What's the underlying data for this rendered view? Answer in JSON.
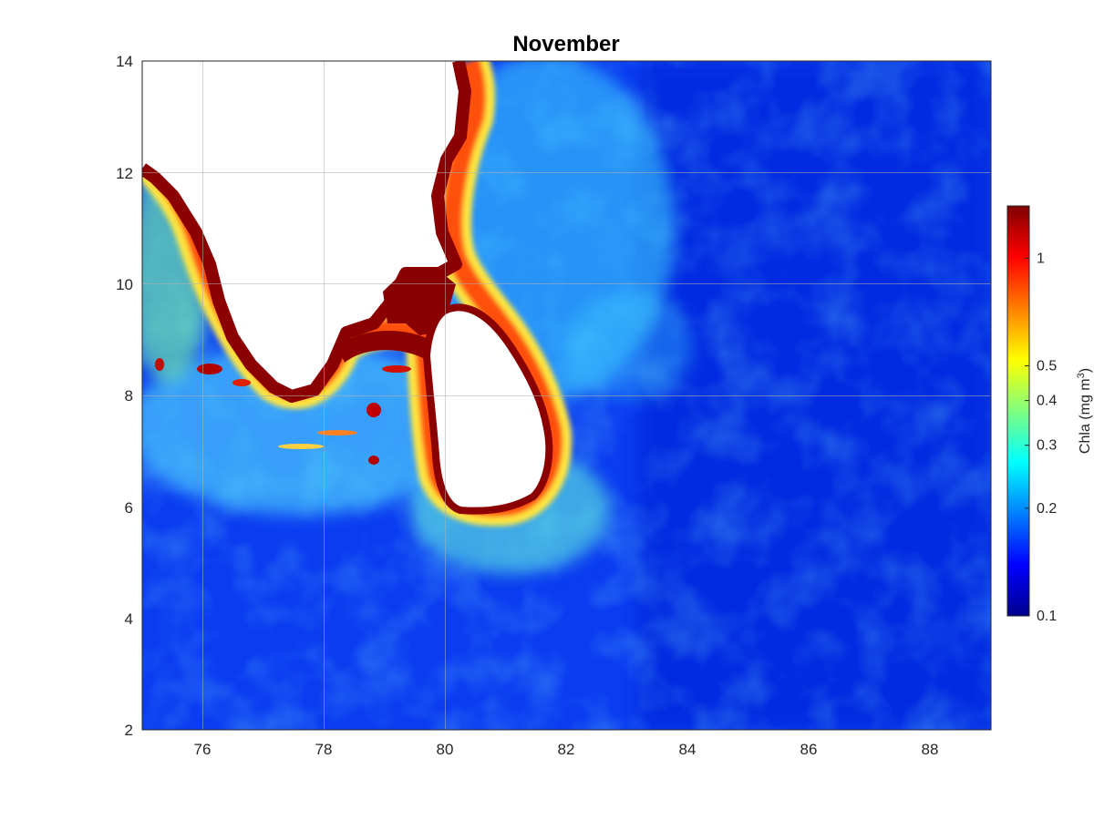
{
  "title": "November",
  "map": {
    "x_ticks": [
      "76",
      "78",
      "80",
      "82",
      "84",
      "86",
      "88"
    ],
    "y_ticks": [
      "2",
      "4",
      "6",
      "8",
      "10",
      "12",
      "14"
    ],
    "x_range": [
      75,
      89
    ],
    "y_range": [
      2,
      14
    ],
    "grid": true,
    "land_color": "#ffffff",
    "colormap": "jet"
  },
  "colorbar": {
    "label": "Chla (mg m",
    "label_exponent": "3",
    "label_close": ")",
    "scale": "log",
    "range": [
      0.1,
      1.4
    ],
    "tick_values": [
      0.1,
      0.2,
      0.3,
      0.4,
      0.5,
      1
    ],
    "tick_labels": [
      "0.1",
      "0.2",
      "0.3",
      "0.4",
      "0.5",
      "1"
    ]
  }
}
